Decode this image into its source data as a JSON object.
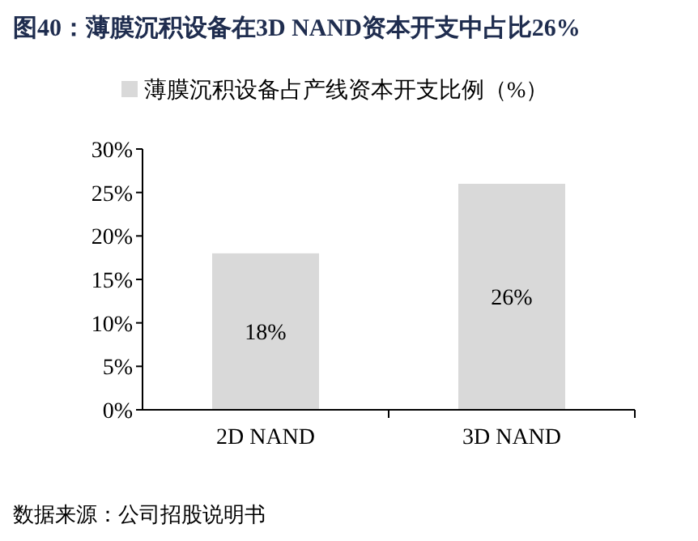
{
  "chart_data": {
    "type": "bar",
    "title": "图40：薄膜沉积设备在3D NAND资本开支中占比26%",
    "categories": [
      "2D NAND",
      "3D NAND"
    ],
    "series": [
      {
        "name": "薄膜沉积设备占产线资本开支比例（%）",
        "color": "#d9d9d9",
        "values": [
          18,
          26
        ],
        "value_labels": [
          "18%",
          "26%"
        ]
      }
    ],
    "ylim": [
      0,
      30
    ],
    "yticks": [
      {
        "value": 0,
        "label": "0%"
      },
      {
        "value": 5,
        "label": "5%"
      },
      {
        "value": 10,
        "label": "10%"
      },
      {
        "value": 15,
        "label": "15%"
      },
      {
        "value": 20,
        "label": "20%"
      },
      {
        "value": 25,
        "label": "25%"
      },
      {
        "value": 30,
        "label": "30%"
      }
    ],
    "grid": false,
    "legend": "top",
    "annotations": [
      "数据来源：公司招股说明书"
    ]
  }
}
